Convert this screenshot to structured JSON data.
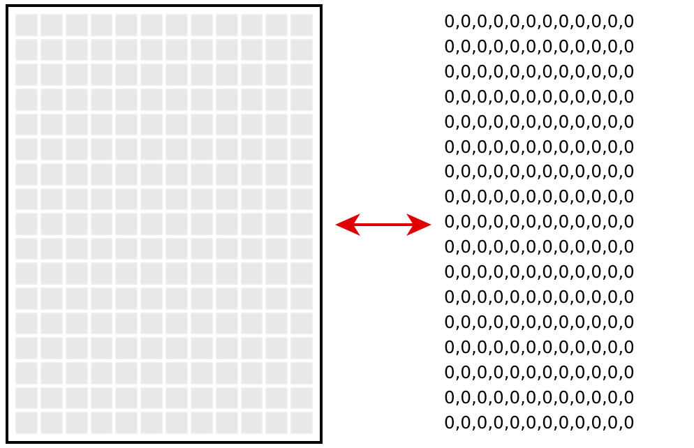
{
  "grid": {
    "rows": 17,
    "cols": 12,
    "cell_value": 0,
    "border_color": "#000000",
    "cell_color": "#e8e8e8"
  },
  "arrow": {
    "color": "#e00000",
    "direction": "bidirectional"
  },
  "matrix": {
    "rows": [
      "0,0,0,0,0,0,0,0,0,0,0,0",
      "0,0,0,0,0,0,0,0,0,0,0,0",
      "0,0,0,0,0,0,0,0,0,0,0,0",
      "0,0,0,0,0,0,0,0,0,0,0,0",
      "0,0,0,0,0,0,0,0,0,0,0,0",
      "0,0,0,0,0,0,0,0,0,0,0,0",
      "0,0,0,0,0,0,0,0,0,0,0,0",
      "0,0,0,0,0,0,0,0,0,0,0,0",
      "0,0,0,0,0,0,0,0,0,0,0,0",
      "0,0,0,0,0,0,0,0,0,0,0,0",
      "0,0,0,0,0,0,0,0,0,0,0,0",
      "0,0,0,0,0,0,0,0,0,0,0,0",
      "0,0,0,0,0,0,0,0,0,0,0,0",
      "0,0,0,0,0,0,0,0,0,0,0,0",
      "0,0,0,0,0,0,0,0,0,0,0,0",
      "0,0,0,0,0,0,0,0,0,0,0,0",
      "0,0,0,0,0,0,0,0,0,0,0,0"
    ]
  }
}
